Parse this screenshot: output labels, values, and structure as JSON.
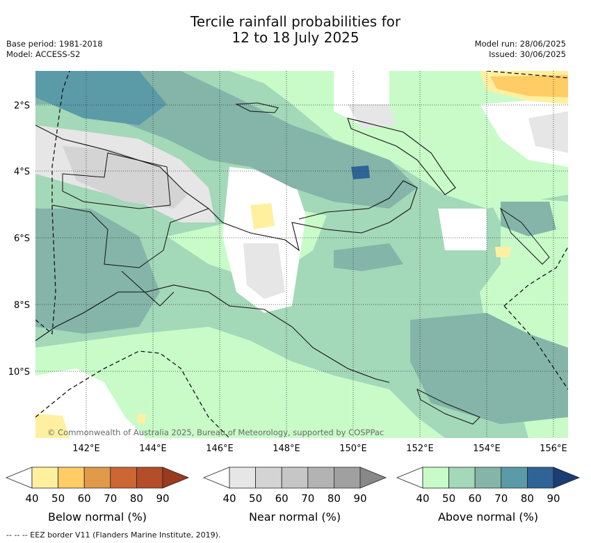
{
  "title_line1": "Tercile rainfall probabilities for",
  "title_line2": "12 to 18 July 2025",
  "base_period": "Base period: 1981-2018",
  "model": "Model: ACCESS-S2",
  "model_run": "Model run: 28/06/2025",
  "issued": "Issued: 30/06/2025",
  "copyright": "© Commonwealth of Australia 2025, Bureau of Meteorology, supported by COSPPac",
  "lat_labels": [
    "2°S",
    "4°S",
    "6°S",
    "8°S",
    "10°S"
  ],
  "lon_labels": [
    "142°E",
    "144°E",
    "146°E",
    "148°E",
    "150°E",
    "152°E",
    "154°E",
    "156°E"
  ],
  "colorbars": [
    {
      "label": "Below normal (%)",
      "ticks": [
        "40",
        "50",
        "60",
        "70",
        "80",
        "90"
      ],
      "colors": [
        "#ffffff",
        "#fff0a0",
        "#ffcc66",
        "#e09a4a",
        "#cc6633",
        "#b34d2a",
        "#9a3a1e"
      ]
    },
    {
      "label": "Near normal (%)",
      "ticks": [
        "40",
        "50",
        "60",
        "70",
        "80",
        "90"
      ],
      "colors": [
        "#ffffff",
        "#e6e6e6",
        "#d4d4d4",
        "#c6c6c6",
        "#b3b3b3",
        "#a0a0a0",
        "#888888"
      ]
    },
    {
      "label": "Above normal (%)",
      "ticks": [
        "40",
        "50",
        "60",
        "70",
        "80",
        "90"
      ],
      "colors": [
        "#ffffff",
        "#c8fbc8",
        "#a3d8b8",
        "#84b5a8",
        "#5b9ba8",
        "#2f6496",
        "#1a3d73"
      ]
    }
  ],
  "footer": "--  --  -- EEZ border V11 (Flanders Marine Institute, 2019)."
}
